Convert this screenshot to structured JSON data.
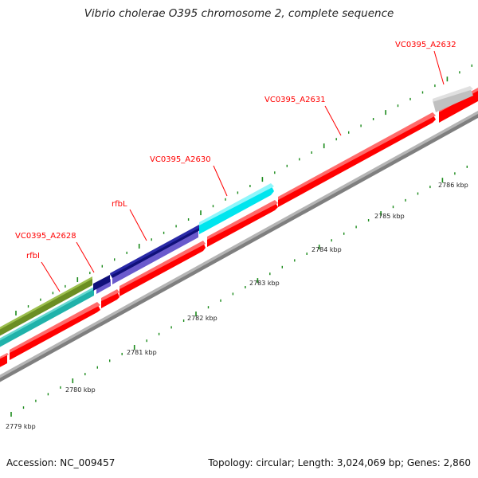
{
  "title": "Vibrio cholerae O395 chromosome 2, complete sequence",
  "footer": {
    "accession": "Accession: NC_009457",
    "summary": "Topology: circular; Length: 3,024,069 bp; Genes: 2,860"
  },
  "colors": {
    "forward_cds": "#ff0000",
    "backbone": "#8c8c8c",
    "tick": "#1a8a1a",
    "gene_label": "#ff0000",
    "grey_gene": "#c0c0c0",
    "cyan_gene": "#00e5ee",
    "navy_gene": "#10107a",
    "purple_gene": "#6a5acd",
    "olive_gene": "#6b8e23",
    "teal_gene": "#20b2aa"
  },
  "tick_labels": [
    "2779 kbp",
    "2780 kbp",
    "2781 kbp",
    "2782 kbp",
    "2783 kbp",
    "2784 kbp",
    "2785 kbp",
    "2786 kbp"
  ],
  "gene_labels": [
    "VC0395_A2632",
    "VC0395_A2631",
    "VC0395_A2630",
    "rfbL",
    "VC0395_A2628",
    "rfbI"
  ]
}
